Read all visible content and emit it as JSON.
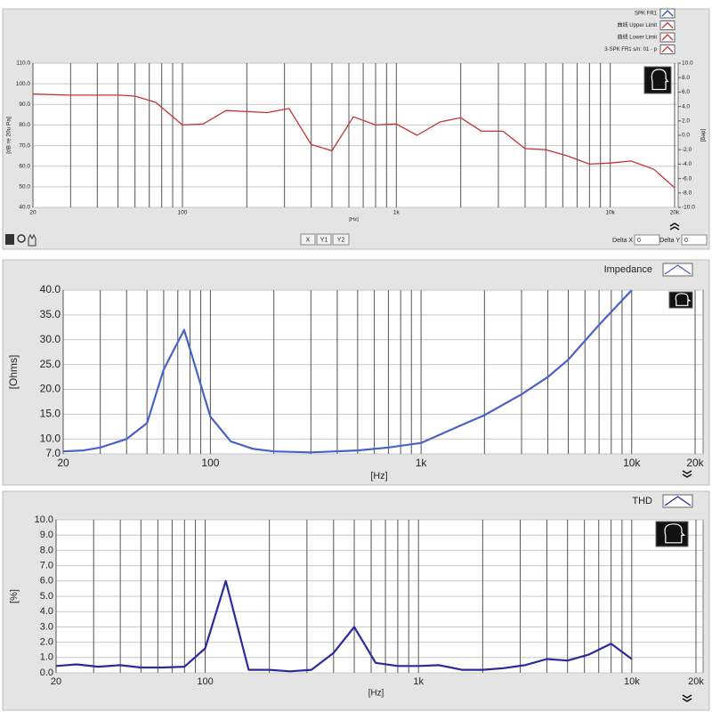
{
  "chart_data": [
    {
      "type": "line",
      "xscale": "log",
      "legend": [
        {
          "name": "SPK FR1",
          "color": "#2c4fb0"
        },
        {
          "name": "曲线 Upper Limit",
          "color": "#c83232"
        },
        {
          "name": "曲线 Lower Limit",
          "color": "#c83232"
        },
        {
          "name": "3-SPK FR1 s/n: 01 - p",
          "color": "#c83232"
        }
      ],
      "x": [
        20,
        30,
        50,
        60,
        75,
        100,
        125,
        160,
        250,
        315,
        400,
        500,
        630,
        800,
        1000,
        1250,
        1600,
        2000,
        2500,
        3150,
        4000,
        5000,
        6300,
        8000,
        10000,
        12500,
        16000,
        20000
      ],
      "series": [
        {
          "color": "#c83232",
          "values": [
            95,
            94.5,
            94.5,
            94,
            91,
            80,
            80.5,
            87,
            86,
            88,
            70.5,
            67.5,
            84,
            80,
            80.5,
            75,
            81.5,
            83.5,
            77,
            77,
            68.5,
            68,
            65,
            61,
            61.5,
            62.5,
            58.5,
            49.5
          ]
        }
      ],
      "xlim": [
        20,
        20000
      ],
      "xticks": [
        20,
        100,
        {
          "value": 1000,
          "label": "1k"
        },
        {
          "value": 10000,
          "label": "10k"
        },
        {
          "value": 20000,
          "label": "20k"
        }
      ],
      "xminor": [
        30,
        40,
        50,
        60,
        70,
        80,
        90,
        200,
        300,
        400,
        500,
        600,
        700,
        800,
        900,
        2000,
        3000,
        4000,
        5000,
        6000,
        7000,
        8000,
        9000
      ],
      "ylim": [
        40,
        110
      ],
      "yticks": [
        {
          "value": 40,
          "label": "40.0"
        },
        {
          "value": 50,
          "label": "50.0"
        },
        {
          "value": 60,
          "label": "60.0"
        },
        {
          "value": 70,
          "label": "70.0"
        },
        {
          "value": 80,
          "label": "80.0"
        },
        {
          "value": 90,
          "label": "90.0"
        },
        {
          "value": 100,
          "label": "100.0"
        },
        {
          "value": 110,
          "label": "110.0"
        }
      ],
      "y2lim": [
        -10,
        10
      ],
      "y2ticks": [
        {
          "value": -10,
          "label": "-10.0"
        },
        {
          "value": -8,
          "label": "-8.0"
        },
        {
          "value": -6,
          "label": "-6.0"
        },
        {
          "value": -4,
          "label": "-4.0"
        },
        {
          "value": -2,
          "label": "-2.0"
        },
        {
          "value": 0,
          "label": "0.0"
        },
        {
          "value": 2,
          "label": "2.0"
        },
        {
          "value": 4,
          "label": "4.0"
        },
        {
          "value": 6,
          "label": "6.0"
        },
        {
          "value": 8,
          "label": "8.0"
        },
        {
          "value": 10,
          "label": "10.0"
        }
      ],
      "y_label": "[dB re 20u Pa]",
      "y2_label": "[deg]",
      "x_label": "[Hz]",
      "grid": true
    },
    {
      "type": "line",
      "xscale": "log",
      "x": [
        20,
        25,
        30,
        40,
        50,
        60,
        75,
        100,
        125,
        160,
        200,
        300,
        500,
        700,
        1000,
        1500,
        2000,
        3000,
        4000,
        5000,
        7000,
        10000
      ],
      "series": [
        {
          "name": "Impedance",
          "color": "#4a62c8",
          "values": [
            7.5,
            7.7,
            8.3,
            10,
            13.2,
            24,
            32,
            14.5,
            9.5,
            8,
            7.5,
            7.3,
            7.7,
            8.3,
            9.2,
            12.5,
            14.8,
            19,
            22.5,
            26,
            33,
            40
          ]
        }
      ],
      "xlim": [
        20,
        20000
      ],
      "xticks": [
        20,
        100,
        {
          "value": 1000,
          "label": "1k"
        },
        {
          "value": 10000,
          "label": "10k"
        },
        {
          "value": 20000,
          "label": "20k"
        }
      ],
      "xminor": [
        30,
        40,
        50,
        60,
        70,
        80,
        90,
        200,
        300,
        400,
        500,
        600,
        700,
        800,
        900,
        2000,
        3000,
        4000,
        5000,
        6000,
        7000,
        8000,
        9000
      ],
      "ylim": [
        7,
        40
      ],
      "yticks": [
        {
          "value": 7,
          "label": "7.0"
        },
        {
          "value": 10,
          "label": "10.0"
        },
        {
          "value": 15,
          "label": "15.0"
        },
        {
          "value": 20,
          "label": "20.0"
        },
        {
          "value": 25,
          "label": "25.0"
        },
        {
          "value": 30,
          "label": "30.0"
        },
        {
          "value": 35,
          "label": "35.0"
        },
        {
          "value": 40,
          "label": "40.0"
        }
      ],
      "y_label": "[Ohms]",
      "x_label": "[Hz]",
      "grid": true
    },
    {
      "type": "line",
      "xscale": "log",
      "x": [
        20,
        25,
        31.5,
        40,
        50,
        63,
        80,
        100,
        125,
        160,
        200,
        250,
        315,
        400,
        500,
        630,
        800,
        1000,
        1250,
        1600,
        2000,
        2500,
        3150,
        4000,
        5000,
        6300,
        8000,
        10000
      ],
      "series": [
        {
          "name": "THD",
          "color": "#2a2aa0",
          "values": [
            0.45,
            0.55,
            0.4,
            0.5,
            0.35,
            0.35,
            0.4,
            1.6,
            6,
            0.2,
            0.2,
            0.1,
            0.2,
            1.3,
            3,
            0.65,
            0.45,
            0.45,
            0.5,
            0.2,
            0.2,
            0.3,
            0.5,
            0.9,
            0.8,
            1.2,
            1.9,
            0.9
          ]
        }
      ],
      "xlim": [
        20,
        20000
      ],
      "xticks": [
        20,
        100,
        {
          "value": 1000,
          "label": "1k"
        },
        {
          "value": 10000,
          "label": "10k"
        },
        {
          "value": 20000,
          "label": "20k"
        }
      ],
      "xminor": [
        30,
        40,
        50,
        60,
        70,
        80,
        90,
        200,
        300,
        400,
        500,
        600,
        700,
        800,
        900,
        2000,
        3000,
        4000,
        5000,
        6000,
        7000,
        8000,
        9000
      ],
      "ylim": [
        0,
        10
      ],
      "yticks": [
        {
          "value": 0,
          "label": "0.0"
        },
        {
          "value": 1,
          "label": "1.0"
        },
        {
          "value": 2,
          "label": "2.0"
        },
        {
          "value": 3,
          "label": "3.0"
        },
        {
          "value": 4,
          "label": "4.0"
        },
        {
          "value": 5,
          "label": "5.0"
        },
        {
          "value": 6,
          "label": "6.0"
        },
        {
          "value": 7,
          "label": "7.0"
        },
        {
          "value": 8,
          "label": "8.0"
        },
        {
          "value": 9,
          "label": "9.0"
        },
        {
          "value": 10,
          "label": "10.0"
        }
      ],
      "y_label": "[%]",
      "x_label": "[Hz]",
      "grid": true
    }
  ],
  "toolbar": {
    "buttons": [
      "X",
      "Y1",
      "Y2"
    ],
    "delta_x_label": "Delta X",
    "delta_x": 0,
    "delta_y_label": "Delta Y",
    "delta_y": 0
  }
}
